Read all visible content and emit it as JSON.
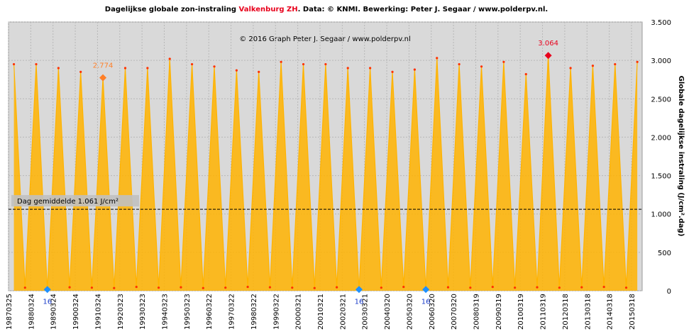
{
  "chart_data": {
    "type": "line",
    "title_parts": [
      "Dagelijkse  globale  zon-instraling ",
      "Valkenburg  ZH",
      ". Data: © KNMI.  Bewerking:  Peter J. Segaar / www.polderpv.nl."
    ],
    "watermark": "© 2016 Graph  Peter J. Segaar / www.polderpv.nl",
    "y_label": "Globale dagelijkse instraling (J/cm².dag)",
    "x": [
      "19870621",
      "19871221",
      "19880621",
      "19881221",
      "19890621",
      "19891221",
      "19900621",
      "19901221",
      "19910621",
      "19911221",
      "19920621",
      "19921221",
      "19930621",
      "19931221",
      "19940621",
      "19941221",
      "19950621",
      "19951221",
      "19960621",
      "19961221",
      "19970621",
      "19971221",
      "19980621",
      "19981221",
      "19990621",
      "19991221",
      "20000621",
      "20001221",
      "20010621",
      "20011221",
      "20020621",
      "20021221",
      "20030621",
      "20031221",
      "20040621",
      "20041221",
      "20050621",
      "20051221",
      "20060621",
      "20061221",
      "20070621",
      "20071221",
      "20080621",
      "20081221",
      "20090621",
      "20091221",
      "20100621",
      "20101221",
      "20110621",
      "20111221",
      "20120621",
      "20121221",
      "20130621",
      "20131221",
      "20140621",
      "20141221",
      "20150621"
    ],
    "series": [
      {
        "name": "Instraling",
        "color": "#ffb300",
        "dot_color": "#ff3000",
        "values": [
          2950,
          40,
          2950,
          16,
          2900,
          45,
          2850,
          40,
          2774,
          35,
          2900,
          50,
          2900,
          40,
          3020,
          45,
          2950,
          35,
          2920,
          40,
          2870,
          50,
          2850,
          45,
          2980,
          40,
          2950,
          35,
          2950,
          45,
          2900,
          16,
          2900,
          40,
          2850,
          50,
          2880,
          16,
          3030,
          45,
          2950,
          40,
          2920,
          50,
          2980,
          40,
          2820,
          45,
          3064,
          40,
          2900,
          45,
          2930,
          50,
          2950,
          40,
          2980
        ]
      }
    ],
    "annotations": [
      {
        "x": "20110621",
        "value": 3064,
        "label": "3.064",
        "color": "#e8001c"
      },
      {
        "x": "19910621",
        "value": 2774,
        "label": "2.774",
        "color": "#ff7f27"
      },
      {
        "x": "19881221",
        "value": 16,
        "label": "16",
        "color": "#1e90ff"
      },
      {
        "x": "20021221",
        "value": 16,
        "label": "16",
        "color": "#1e90ff"
      },
      {
        "x": "20051221",
        "value": 16,
        "label": "16",
        "color": "#1e90ff"
      }
    ],
    "average": {
      "value": 1061,
      "label": "Dag gemiddelde 1.061 J/cm²"
    },
    "xlim": [
      "19870325",
      "20150909"
    ],
    "xticks": [
      "19870325",
      "19880324",
      "19890324",
      "19900324",
      "19910324",
      "19920323",
      "19930323",
      "19940323",
      "19950323",
      "19960322",
      "19970322",
      "19980322",
      "19990322",
      "20000321",
      "20010321",
      "20020321",
      "20030321",
      "20040320",
      "20050320",
      "20060320",
      "20070320",
      "20080319",
      "20090319",
      "20100319",
      "20110319",
      "20120318",
      "20130318",
      "20140318",
      "20150318"
    ],
    "ylim": [
      0,
      3500
    ],
    "yticks": [
      0,
      500,
      {
        "value": 1000,
        "label": "1.000"
      },
      {
        "value": 1500,
        "label": "1.500"
      },
      {
        "value": 2000,
        "label": "2.000"
      },
      {
        "value": 2500,
        "label": "2.500"
      },
      {
        "value": 3000,
        "label": "3.000"
      },
      {
        "value": 3500,
        "label": "3.500"
      }
    ],
    "grid": true
  }
}
